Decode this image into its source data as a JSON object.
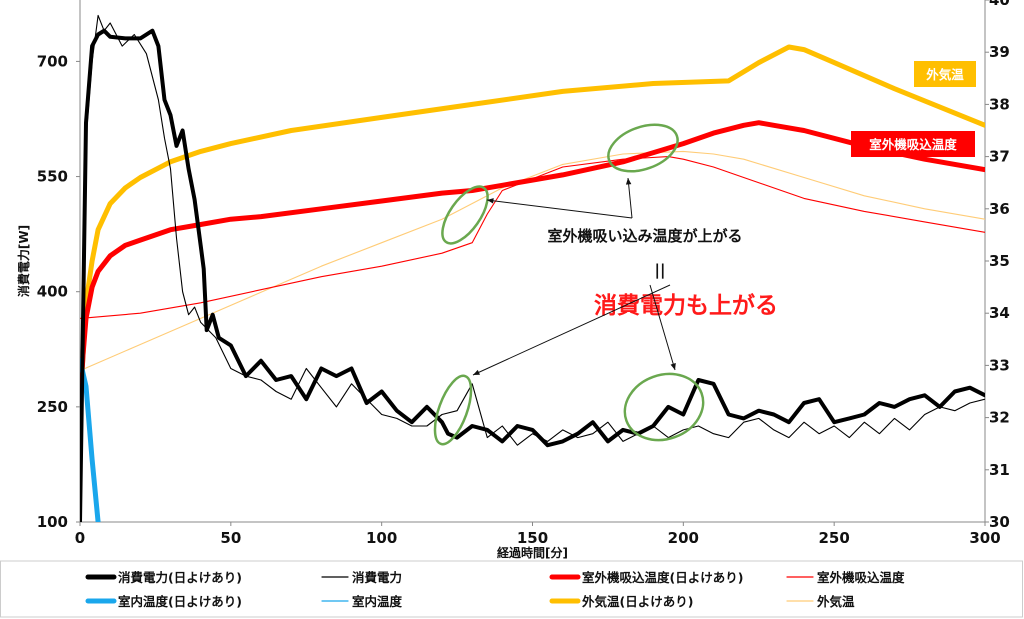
{
  "chart_data": {
    "type": "line",
    "xlabel": "経過時間[分]",
    "ylabel": "消費電力[W]",
    "xlim": [
      0,
      300
    ],
    "ylim": [
      100,
      780
    ],
    "y2lim": [
      30,
      40
    ],
    "x_ticks": [
      "0",
      "50",
      "100",
      "150",
      "200",
      "250",
      "300"
    ],
    "y_ticks": [
      "100",
      "250",
      "400",
      "550",
      "700"
    ],
    "y2_ticks": [
      "30",
      "31",
      "32",
      "33",
      "34",
      "35",
      "36",
      "37",
      "38",
      "39",
      "40"
    ],
    "grid": false,
    "legend_position": "bottom",
    "legend": [
      "消費電力(日よけあり)",
      "消費電力",
      "室外機吸込温度(日よけあり)",
      "室外機吸込温度",
      "室内温度(日よけあり)",
      "室内温度",
      "外気温(日よけあり)",
      "外気温"
    ],
    "series": [
      {
        "name": "消費電力(日よけあり)",
        "axis": "left",
        "color": "#000000",
        "width": "thick",
        "x": [
          0,
          2,
          4,
          6,
          8,
          10,
          15,
          20,
          24,
          26,
          28,
          30,
          32,
          34,
          36,
          38,
          40,
          41,
          42,
          44,
          46,
          50,
          55,
          60,
          65,
          70,
          75,
          80,
          85,
          90,
          95,
          100,
          105,
          110,
          115,
          120,
          122,
          125,
          130,
          135,
          140,
          145,
          150,
          155,
          160,
          165,
          170,
          175,
          180,
          185,
          190,
          195,
          200,
          205,
          210,
          215,
          220,
          225,
          230,
          235,
          240,
          245,
          250,
          255,
          260,
          265,
          270,
          275,
          280,
          285,
          290,
          295,
          300
        ],
        "y": [
          100,
          620,
          720,
          735,
          740,
          732,
          730,
          730,
          740,
          720,
          650,
          630,
          590,
          610,
          560,
          520,
          460,
          430,
          350,
          370,
          340,
          330,
          290,
          310,
          285,
          290,
          260,
          300,
          290,
          300,
          255,
          270,
          245,
          230,
          250,
          230,
          215,
          210,
          225,
          220,
          205,
          225,
          220,
          200,
          205,
          215,
          230,
          205,
          220,
          215,
          225,
          250,
          240,
          285,
          280,
          240,
          235,
          245,
          240,
          230,
          255,
          260,
          230,
          235,
          240,
          255,
          250,
          260,
          265,
          250,
          270,
          275,
          265
        ]
      },
      {
        "name": "消費電力",
        "axis": "left",
        "color": "#000000",
        "width": "thin",
        "x": [
          0,
          2,
          4,
          6,
          8,
          10,
          14,
          18,
          22,
          26,
          28,
          30,
          32,
          34,
          36,
          38,
          40,
          45,
          50,
          55,
          60,
          65,
          70,
          75,
          80,
          85,
          90,
          95,
          100,
          105,
          110,
          115,
          120,
          125,
          130,
          135,
          140,
          145,
          150,
          155,
          160,
          165,
          170,
          175,
          180,
          185,
          190,
          195,
          200,
          205,
          210,
          215,
          220,
          225,
          230,
          235,
          240,
          245,
          250,
          255,
          260,
          265,
          270,
          275,
          280,
          285,
          290,
          295,
          300
        ],
        "y": [
          100,
          600,
          700,
          760,
          740,
          750,
          720,
          735,
          710,
          650,
          600,
          560,
          470,
          400,
          370,
          380,
          360,
          340,
          300,
          290,
          285,
          270,
          260,
          300,
          275,
          250,
          280,
          260,
          240,
          235,
          225,
          225,
          240,
          245,
          280,
          210,
          225,
          200,
          215,
          205,
          220,
          210,
          215,
          230,
          205,
          215,
          225,
          210,
          220,
          225,
          215,
          210,
          230,
          235,
          220,
          210,
          230,
          215,
          225,
          210,
          230,
          215,
          235,
          220,
          240,
          250,
          245,
          255,
          260
        ]
      },
      {
        "name": "室外機吸込温度(日よけあり)",
        "axis": "right",
        "color": "#ff0000",
        "width": "thick",
        "x": [
          0,
          1,
          2,
          4,
          6,
          10,
          15,
          20,
          30,
          40,
          50,
          60,
          80,
          100,
          120,
          130,
          140,
          160,
          180,
          200,
          210,
          220,
          225,
          230,
          240,
          260,
          280,
          300
        ],
        "y": [
          32.2,
          33.2,
          33.9,
          34.5,
          34.8,
          35.1,
          35.3,
          35.4,
          35.6,
          35.7,
          35.8,
          35.85,
          36.0,
          36.15,
          36.3,
          36.35,
          36.45,
          36.65,
          36.9,
          37.25,
          37.45,
          37.6,
          37.65,
          37.6,
          37.5,
          37.2,
          36.95,
          36.75
        ]
      },
      {
        "name": "室外機吸込温度",
        "axis": "right",
        "color": "#ff0000",
        "width": "thin",
        "x": [
          0,
          20,
          40,
          60,
          80,
          100,
          120,
          130,
          135,
          140,
          160,
          180,
          195,
          200,
          210,
          220,
          240,
          260,
          280,
          300
        ],
        "y": [
          33.9,
          34.0,
          34.2,
          34.45,
          34.7,
          34.9,
          35.15,
          35.35,
          35.9,
          36.35,
          36.8,
          36.95,
          37.0,
          36.95,
          36.8,
          36.6,
          36.2,
          35.95,
          35.75,
          35.55
        ]
      },
      {
        "name": "室内温度(日よけあり)",
        "axis": "right",
        "color": "#1aa7ec",
        "width": "thick",
        "x": [
          0,
          2,
          4,
          6
        ],
        "y": [
          33.1,
          32.6,
          31.2,
          30.0
        ]
      },
      {
        "name": "室内温度",
        "axis": "right",
        "color": "#1aa7ec",
        "width": "thin",
        "x": [
          0,
          2,
          4,
          6
        ],
        "y": [
          33.0,
          32.4,
          31.0,
          29.8
        ]
      },
      {
        "name": "外気温(日よけあり)",
        "axis": "right",
        "color": "#ffbf00",
        "width": "thick",
        "x": [
          0,
          1,
          2,
          4,
          6,
          10,
          15,
          20,
          30,
          40,
          50,
          70,
          100,
          130,
          160,
          190,
          215,
          225,
          235,
          240,
          250,
          270,
          300
        ],
        "y": [
          32.2,
          33.2,
          34.2,
          35.0,
          35.6,
          36.1,
          36.4,
          36.6,
          36.9,
          37.1,
          37.25,
          37.5,
          37.75,
          38.0,
          38.25,
          38.4,
          38.45,
          38.8,
          39.1,
          39.05,
          38.8,
          38.3,
          37.6
        ]
      },
      {
        "name": "外気温",
        "axis": "right",
        "color": "#ffcc77",
        "width": "thin",
        "x": [
          0,
          20,
          40,
          60,
          80,
          100,
          120,
          140,
          160,
          180,
          200,
          210,
          220,
          240,
          260,
          280,
          300
        ],
        "y": [
          32.9,
          33.4,
          33.9,
          34.4,
          34.9,
          35.35,
          35.8,
          36.4,
          36.85,
          37.05,
          37.1,
          37.05,
          36.95,
          36.6,
          36.25,
          36.0,
          35.8
        ]
      }
    ],
    "series_labels": [
      {
        "text": "外気温",
        "color": "#ffbf00"
      },
      {
        "text": "室外機吸込温度",
        "color": "#ff0000"
      }
    ],
    "annotations": {
      "line1": "室外機吸い込み温度が上がる",
      "line2": "||",
      "line3": "消費電力も上がる"
    }
  }
}
